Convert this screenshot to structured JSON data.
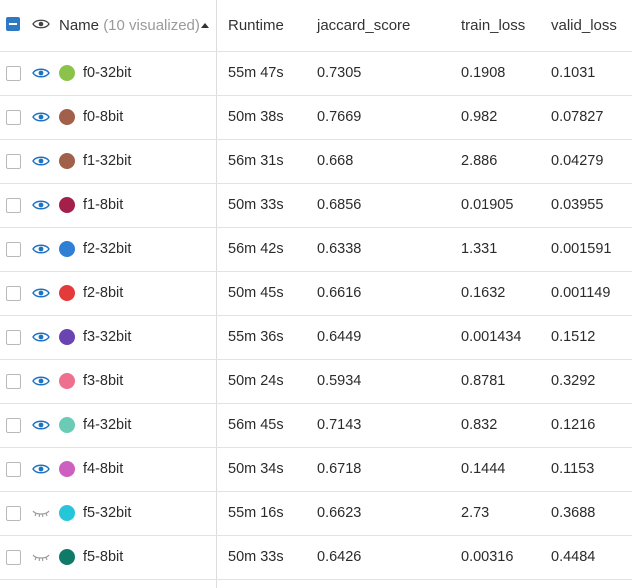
{
  "header": {
    "name_label": "Name",
    "name_count": "(10 visualized)",
    "col_runtime": "Runtime",
    "col_jaccard": "jaccard_score",
    "col_train_loss": "train_loss",
    "col_valid_loss": "valid_loss"
  },
  "rows": [
    {
      "name": "f0-32bit",
      "color": "#8bc34a",
      "visible": true,
      "runtime": "55m 47s",
      "jaccard": "0.7305",
      "train_loss": "0.1908",
      "valid_loss": "0.1031"
    },
    {
      "name": "f0-8bit",
      "color": "#a0604a",
      "visible": true,
      "runtime": "50m 38s",
      "jaccard": "0.7669",
      "train_loss": "0.982",
      "valid_loss": "0.07827"
    },
    {
      "name": "f1-32bit",
      "color": "#a0604a",
      "visible": true,
      "runtime": "56m 31s",
      "jaccard": "0.668",
      "train_loss": "2.886",
      "valid_loss": "0.04279"
    },
    {
      "name": "f1-8bit",
      "color": "#a3204a",
      "visible": true,
      "runtime": "50m 33s",
      "jaccard": "0.6856",
      "train_loss": "0.01905",
      "valid_loss": "0.03955"
    },
    {
      "name": "f2-32bit",
      "color": "#2f7fd4",
      "visible": true,
      "runtime": "56m 42s",
      "jaccard": "0.6338",
      "train_loss": "1.331",
      "valid_loss": "0.001591"
    },
    {
      "name": "f2-8bit",
      "color": "#e53a3a",
      "visible": true,
      "runtime": "50m 45s",
      "jaccard": "0.6616",
      "train_loss": "0.1632",
      "valid_loss": "0.001149"
    },
    {
      "name": "f3-32bit",
      "color": "#6a44b0",
      "visible": true,
      "runtime": "55m 36s",
      "jaccard": "0.6449",
      "train_loss": "0.001434",
      "valid_loss": "0.1512"
    },
    {
      "name": "f3-8bit",
      "color": "#ef6f8e",
      "visible": true,
      "runtime": "50m 24s",
      "jaccard": "0.5934",
      "train_loss": "0.8781",
      "valid_loss": "0.3292"
    },
    {
      "name": "f4-32bit",
      "color": "#6bcbb7",
      "visible": true,
      "runtime": "56m 45s",
      "jaccard": "0.7143",
      "train_loss": "0.832",
      "valid_loss": "0.1216"
    },
    {
      "name": "f4-8bit",
      "color": "#cd5fc0",
      "visible": true,
      "runtime": "50m 34s",
      "jaccard": "0.6718",
      "train_loss": "0.1444",
      "valid_loss": "0.1153"
    },
    {
      "name": "f5-32bit",
      "color": "#26c6da",
      "visible": false,
      "runtime": "55m 16s",
      "jaccard": "0.6623",
      "train_loss": "2.73",
      "valid_loss": "0.3688"
    },
    {
      "name": "f5-8bit",
      "color": "#0f7a67",
      "visible": false,
      "runtime": "50m 33s",
      "jaccard": "0.6426",
      "train_loss": "0.00316",
      "valid_loss": "0.4484"
    }
  ],
  "icons": {
    "visible": "eye-icon",
    "hidden": "eye-closed-icon",
    "sort": "sort-ascending-icon"
  }
}
